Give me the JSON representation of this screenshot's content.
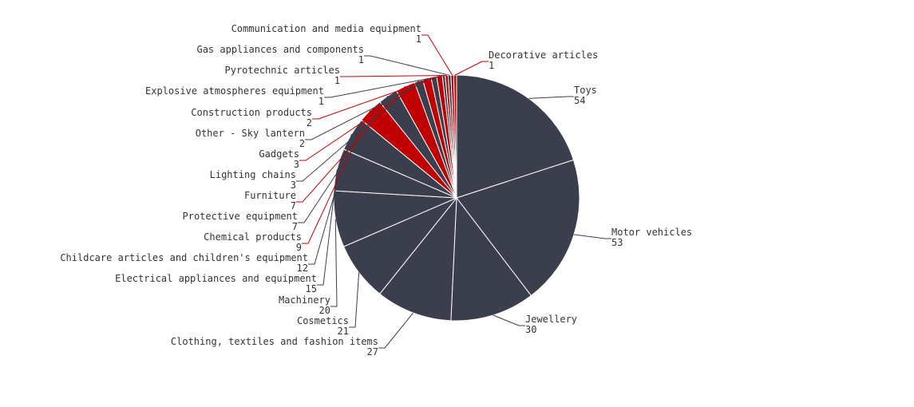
{
  "chart_data": {
    "type": "pie",
    "title": "",
    "slices": [
      {
        "label": "Toys",
        "value": 54,
        "color": "#3b3e4d"
      },
      {
        "label": "Motor vehicles",
        "value": 53,
        "color": "#3b3e4d"
      },
      {
        "label": "Jewellery",
        "value": 30,
        "color": "#3b3e4d"
      },
      {
        "label": "Clothing, textiles and fashion items",
        "value": 27,
        "color": "#3b3e4d"
      },
      {
        "label": "Cosmetics",
        "value": 21,
        "color": "#3b3e4d"
      },
      {
        "label": "Machinery",
        "value": 20,
        "color": "#3b3e4d"
      },
      {
        "label": "Electrical appliances and equipment",
        "value": 15,
        "color": "#3b3e4d"
      },
      {
        "label": "Childcare articles and children's equipment",
        "value": 12,
        "color": "#3b3e4d"
      },
      {
        "label": "Chemical products",
        "value": 9,
        "color": "#c00000"
      },
      {
        "label": "Protective equipment",
        "value": 7,
        "color": "#3b3e4d"
      },
      {
        "label": "Furniture",
        "value": 7,
        "color": "#c00000"
      },
      {
        "label": "Lighting chains",
        "value": 3,
        "color": "#3b3e4d"
      },
      {
        "label": "Gadgets",
        "value": 3,
        "color": "#c00000"
      },
      {
        "label": "Other - Sky lantern",
        "value": 2,
        "color": "#3b3e4d"
      },
      {
        "label": "Construction products",
        "value": 2,
        "color": "#c00000"
      },
      {
        "label": "Explosive atmospheres equipment",
        "value": 1,
        "color": "#3b3e4d"
      },
      {
        "label": "Pyrotechnic articles",
        "value": 1,
        "color": "#c00000"
      },
      {
        "label": "Gas appliances and components",
        "value": 1,
        "color": "#3b3e4d"
      },
      {
        "label": "Communication and media equipment",
        "value": 1,
        "color": "#c00000"
      },
      {
        "label": "Decorative articles",
        "value": 1,
        "color": "#c00000"
      }
    ]
  }
}
